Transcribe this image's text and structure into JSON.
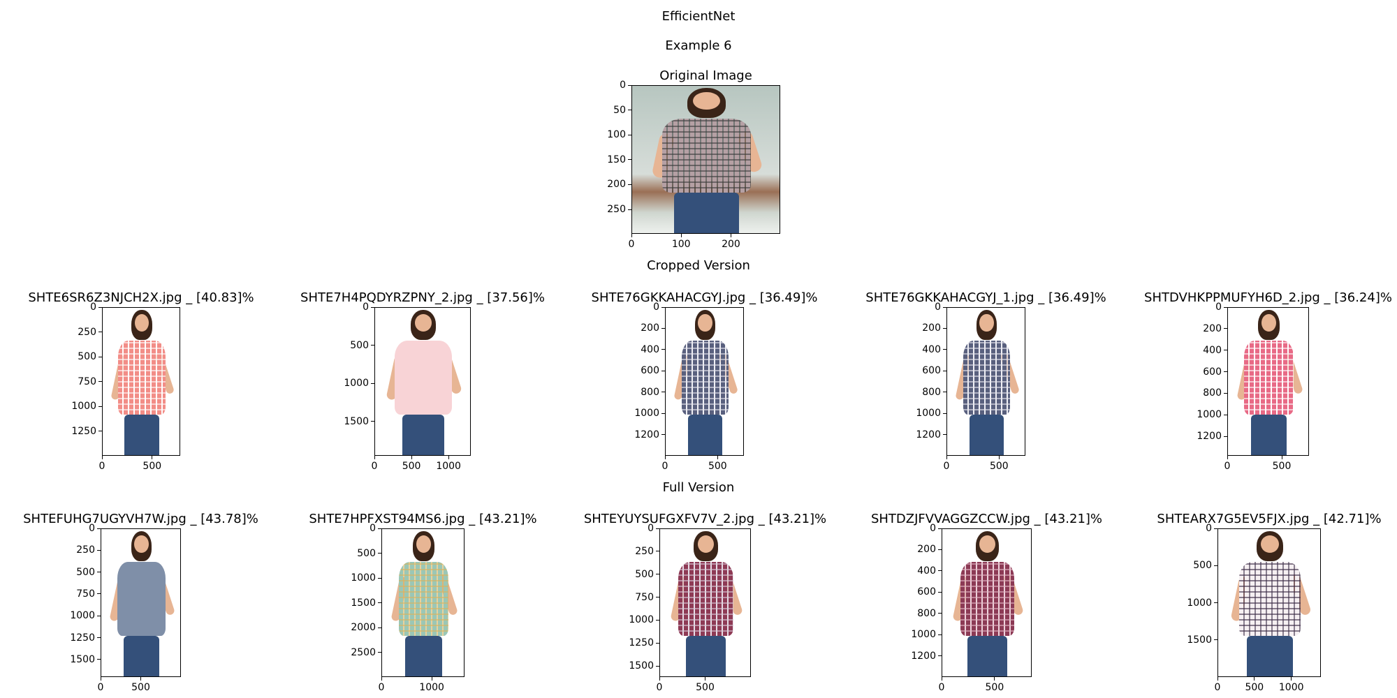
{
  "figure": {
    "title": "EfficientNet",
    "subtitle": "Example 6",
    "original_title": "Original Image",
    "cropped_title": "Cropped Version",
    "full_title": "Full Version"
  },
  "chart_data": [
    {
      "type": "image",
      "id": "original",
      "title": "Original Image",
      "x_range": [
        0,
        299
      ],
      "y_range": [
        0,
        299
      ],
      "xticks": [
        0,
        100,
        200
      ],
      "yticks": [
        0,
        50,
        100,
        150,
        200,
        250
      ],
      "colors": {
        "shirt": "#b5a0a4",
        "shirt_check": "#3b3b3b",
        "background": "#b7c6c0",
        "ground": "#9a6f55"
      }
    },
    {
      "type": "image",
      "id": "crop-1",
      "section": "cropped",
      "title": "SHTE6SR6Z3NJCH2X.jpg _ [40.83]%",
      "filename": "SHTE6SR6Z3NJCH2X.jpg",
      "score": 40.83,
      "x_range": [
        0,
        780
      ],
      "y_range": [
        0,
        1500
      ],
      "xticks": [
        0,
        500
      ],
      "yticks": [
        0,
        250,
        500,
        750,
        1000,
        1250
      ],
      "colors": {
        "shirt": "#f28d87",
        "shirt_check": "#ffffff"
      }
    },
    {
      "type": "image",
      "id": "crop-2",
      "section": "cropped",
      "title": "SHTE7H4PQDYRZPNY_2.jpg _ [37.56]%",
      "filename": "SHTE7H4PQDYRZPNY_2.jpg",
      "score": 37.56,
      "x_range": [
        0,
        1300
      ],
      "y_range": [
        0,
        1950
      ],
      "xticks": [
        0,
        500,
        1000
      ],
      "yticks": [
        0,
        500,
        1000,
        1500
      ],
      "colors": {
        "shirt": "#f8d3d6",
        "shirt_check": "#f8d3d6"
      }
    },
    {
      "type": "image",
      "id": "crop-3",
      "section": "cropped",
      "title": "SHTE76GKKAHACGYJ.jpg _ [36.49]%",
      "filename": "SHTE76GKKAHACGYJ.jpg",
      "score": 36.49,
      "x_range": [
        0,
        750
      ],
      "y_range": [
        0,
        1400
      ],
      "xticks": [
        0,
        500
      ],
      "yticks": [
        0,
        200,
        400,
        600,
        800,
        1000,
        1200
      ],
      "colors": {
        "shirt": "#59607e",
        "shirt_check": "#e7e7ef"
      }
    },
    {
      "type": "image",
      "id": "crop-4",
      "section": "cropped",
      "title": "SHTE76GKKAHACGYJ_1.jpg _ [36.49]%",
      "filename": "SHTE76GKKAHACGYJ_1.jpg",
      "score": 36.49,
      "x_range": [
        0,
        750
      ],
      "y_range": [
        0,
        1400
      ],
      "xticks": [
        0,
        500
      ],
      "yticks": [
        0,
        200,
        400,
        600,
        800,
        1000,
        1200
      ],
      "colors": {
        "shirt": "#59607e",
        "shirt_check": "#e7e7ef"
      }
    },
    {
      "type": "image",
      "id": "crop-5",
      "section": "cropped",
      "title": "SHTDVHKPPMUFYH6D_2.jpg _ [36.24]%",
      "filename": "SHTDVHKPPMUFYH6D_2.jpg",
      "score": 36.24,
      "x_range": [
        0,
        750
      ],
      "y_range": [
        0,
        1380
      ],
      "xticks": [
        0,
        500
      ],
      "yticks": [
        0,
        200,
        400,
        600,
        800,
        1000,
        1200
      ],
      "colors": {
        "shirt": "#e86a86",
        "shirt_check": "#ffffff"
      }
    },
    {
      "type": "image",
      "id": "full-1",
      "section": "full",
      "title": "SHTEFUHG7UGYVH7W.jpg _ [43.78]%",
      "filename": "SHTEFUHG7UGYVH7W.jpg",
      "score": 43.78,
      "x_range": [
        0,
        1000
      ],
      "y_range": [
        0,
        1700
      ],
      "xticks": [
        0,
        500
      ],
      "yticks": [
        0,
        250,
        500,
        750,
        1000,
        1250,
        1500
      ],
      "colors": {
        "shirt": "#7f8fa8",
        "shirt_check": "#7f8fa8"
      }
    },
    {
      "type": "image",
      "id": "full-2",
      "section": "full",
      "title": "SHTE7HPFXST94MS6.jpg _ [43.21]%",
      "filename": "SHTE7HPFXST94MS6.jpg",
      "score": 43.21,
      "x_range": [
        0,
        1650
      ],
      "y_range": [
        0,
        3000
      ],
      "xticks": [
        0,
        1000
      ],
      "yticks": [
        0,
        500,
        1000,
        1500,
        2000,
        2500
      ],
      "colors": {
        "shirt": "#9bc7b6",
        "shirt_check": "#d9b35e"
      }
    },
    {
      "type": "image",
      "id": "full-3",
      "section": "full",
      "title": "SHTEYUYSUFGXFV7V_2.jpg _ [43.21]%",
      "filename": "SHTEYUYSUFGXFV7V_2.jpg",
      "score": 43.21,
      "x_range": [
        0,
        1000
      ],
      "y_range": [
        0,
        1620
      ],
      "xticks": [
        0,
        500
      ],
      "yticks": [
        0,
        250,
        500,
        750,
        1000,
        1250,
        1500
      ],
      "colors": {
        "shirt": "#8e3a55",
        "shirt_check": "#d9c9d9"
      }
    },
    {
      "type": "image",
      "id": "full-4",
      "section": "full",
      "title": "SHTDZJFVVAGGZCCW.jpg _ [43.21]%",
      "filename": "SHTDZJFVVAGGZCCW.jpg",
      "score": 43.21,
      "x_range": [
        0,
        850
      ],
      "y_range": [
        0,
        1400
      ],
      "xticks": [
        0,
        500
      ],
      "yticks": [
        0,
        200,
        400,
        600,
        800,
        1000,
        1200
      ],
      "colors": {
        "shirt": "#8c3a55",
        "shirt_check": "#e3b6c4"
      }
    },
    {
      "type": "image",
      "id": "full-5",
      "section": "full",
      "title": "SHTEARX7G5EV5FJX.jpg _ [42.71]%",
      "filename": "SHTEARX7G5EV5FJX.jpg",
      "score": 42.71,
      "x_range": [
        0,
        1400
      ],
      "y_range": [
        0,
        2000
      ],
      "xticks": [
        0,
        500,
        1000
      ],
      "yticks": [
        0,
        500,
        1000,
        1500
      ],
      "colors": {
        "shirt": "#f6f0f2",
        "shirt_check": "#3a2a44"
      }
    }
  ]
}
